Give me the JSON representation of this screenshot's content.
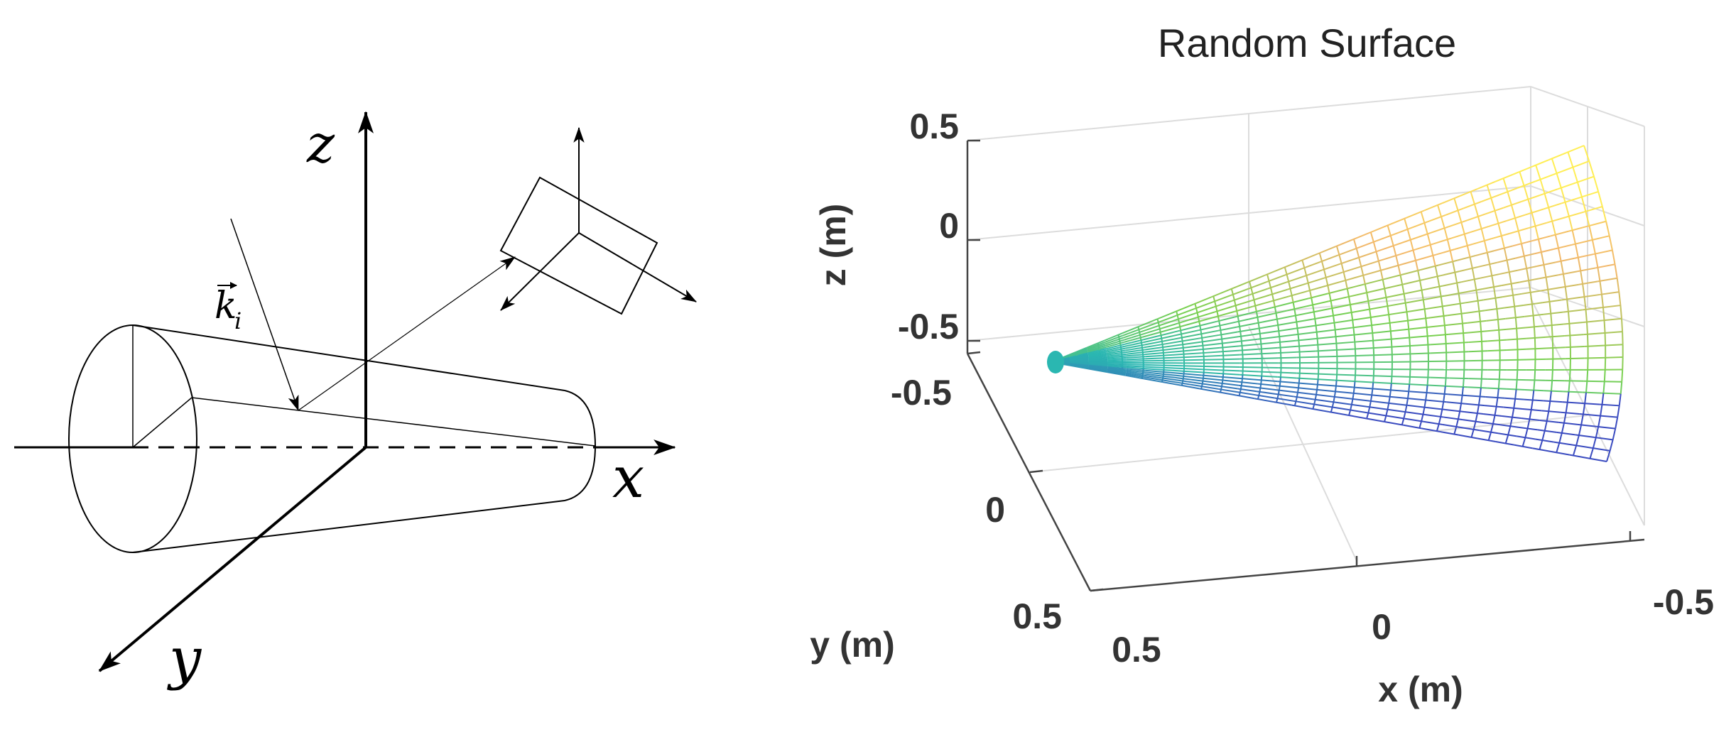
{
  "diagram": {
    "axis_labels": {
      "z": "z",
      "x": "x",
      "y": "y"
    },
    "vector_label": {
      "base": "k",
      "subscript": "i"
    }
  },
  "plot": {
    "title": "Random Surface",
    "xlabel": "x (m)",
    "ylabel": "y (m)",
    "zlabel": "z (m)",
    "z_ticks": [
      "0.5",
      "0",
      "-0.5"
    ],
    "y_ticks": [
      "-0.5",
      "0",
      "0.5"
    ],
    "x_ticks": [
      "0.5",
      "0",
      "-0.5"
    ],
    "colormap": [
      "#3b4cc0",
      "#2ab7b1",
      "#7ad151",
      "#f2b86b",
      "#ffee55"
    ],
    "grid": true
  }
}
